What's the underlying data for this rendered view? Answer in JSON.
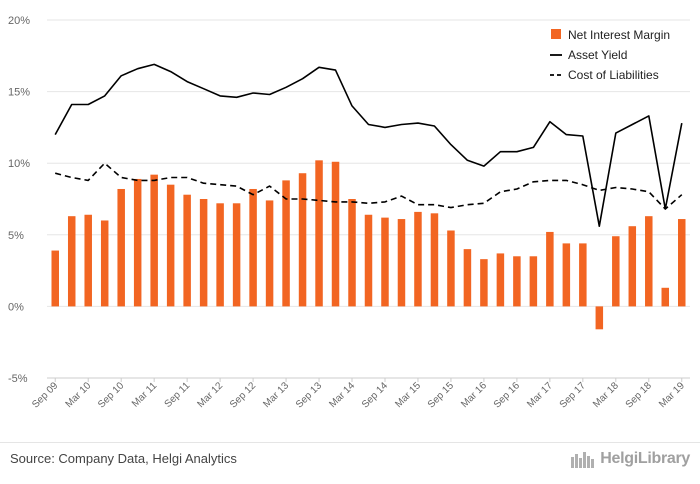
{
  "chart_data": {
    "type": "bar+line",
    "title": "",
    "xlabel": "",
    "ylabel": "",
    "ylim": [
      -5,
      20
    ],
    "y_ticks": [
      "20%",
      "15%",
      "10%",
      "5%",
      "0%",
      "-5%"
    ],
    "y_tick_values": [
      20,
      15,
      10,
      5,
      0,
      -5
    ],
    "x_tick_labels": [
      "Sep 09",
      "Mar 10",
      "Sep 10",
      "Mar 11",
      "Sep 11",
      "Mar 12",
      "Sep 12",
      "Mar 13",
      "Sep 13",
      "Mar 14",
      "Sep 14",
      "Mar 15",
      "Sep 15",
      "Mar 16",
      "Sep 16",
      "Mar 17",
      "Sep 17",
      "Mar 18",
      "Sep 18",
      "Mar 19"
    ],
    "categories": [
      "Sep 09",
      "Dec 09",
      "Mar 10",
      "Jun 10",
      "Sep 10",
      "Dec 10",
      "Mar 11",
      "Jun 11",
      "Sep 11",
      "Dec 11",
      "Mar 12",
      "Jun 12",
      "Sep 12",
      "Dec 12",
      "Mar 13",
      "Jun 13",
      "Sep 13",
      "Dec 13",
      "Mar 14",
      "Jun 14",
      "Sep 14",
      "Dec 14",
      "Mar 15",
      "Jun 15",
      "Sep 15",
      "Dec 15",
      "Mar 16",
      "Jun 16",
      "Sep 16",
      "Dec 16",
      "Mar 17",
      "Jun 17",
      "Sep 17",
      "Dec 17",
      "Mar 18",
      "Jun 18",
      "Sep 18",
      "Dec 18",
      "Mar 19"
    ],
    "series": [
      {
        "name": "Net Interest Margin",
        "kind": "bar",
        "color": "#f26522",
        "values": [
          3.9,
          6.3,
          6.4,
          6.0,
          8.2,
          8.9,
          9.2,
          8.5,
          7.8,
          7.5,
          7.2,
          7.2,
          8.2,
          7.4,
          8.8,
          9.3,
          10.2,
          10.1,
          7.5,
          6.4,
          6.2,
          6.1,
          6.6,
          6.5,
          5.3,
          4.0,
          3.3,
          3.7,
          3.5,
          3.5,
          5.2,
          4.4,
          4.4,
          -1.6,
          4.9,
          5.6,
          6.3,
          1.3,
          6.1
        ]
      },
      {
        "name": "Asset Yield",
        "kind": "line",
        "style": "solid",
        "color": "#000000",
        "values": [
          12.0,
          14.1,
          14.1,
          14.7,
          16.1,
          16.6,
          16.9,
          16.4,
          15.7,
          15.2,
          14.7,
          14.6,
          14.9,
          14.8,
          15.3,
          15.9,
          16.7,
          16.5,
          14.0,
          12.7,
          12.5,
          12.7,
          12.8,
          12.6,
          11.3,
          10.2,
          9.8,
          10.8,
          10.8,
          11.1,
          12.9,
          12.0,
          11.9,
          5.6,
          12.1,
          12.7,
          13.3,
          6.8,
          12.8
        ]
      },
      {
        "name": "Cost of Liabilities",
        "kind": "line",
        "style": "dashed",
        "color": "#000000",
        "values": [
          9.3,
          9.0,
          8.8,
          10.0,
          9.0,
          8.8,
          8.8,
          9.0,
          9.0,
          8.6,
          8.5,
          8.4,
          7.8,
          8.4,
          7.5,
          7.5,
          7.4,
          7.3,
          7.3,
          7.2,
          7.3,
          7.7,
          7.1,
          7.1,
          6.9,
          7.1,
          7.2,
          8.0,
          8.2,
          8.7,
          8.8,
          8.8,
          8.5,
          8.1,
          8.3,
          8.2,
          8.0,
          6.8,
          7.8
        ]
      }
    ],
    "legend": [
      "Net Interest Margin",
      "Asset Yield",
      "Cost of Liabilities"
    ],
    "legend_position": "top-right",
    "grid": true
  },
  "footer": {
    "source": "Source: Company Data, Helgi Analytics",
    "brand": "HelgiLibrary"
  }
}
